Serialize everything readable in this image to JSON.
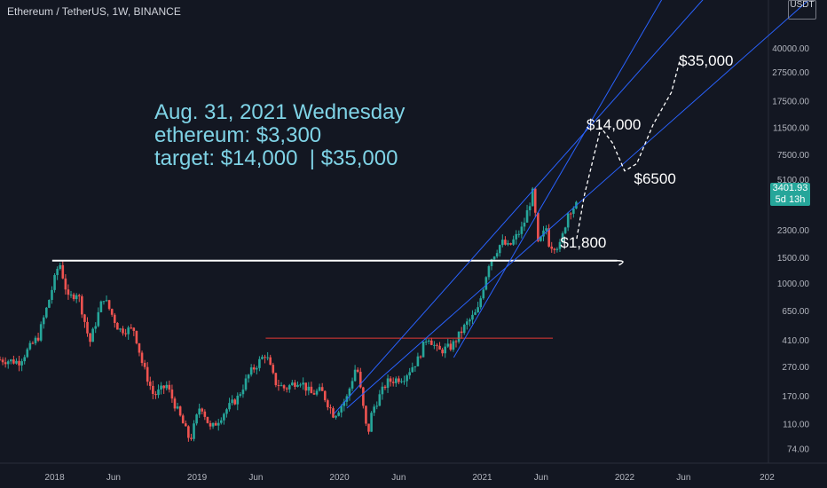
{
  "header": {
    "title": "Ethereum / TetherUS, 1W, BINANCE"
  },
  "currency": {
    "top": "USDT"
  },
  "current_price": {
    "value": "3401.93",
    "countdown": "5d 13h",
    "color": "#26a69a"
  },
  "annotation": {
    "lines": [
      "Aug. 31, 2021 Wednesday",
      "ethereum: $3,300",
      "target: $14,000  | $35,000"
    ],
    "color": "#7fd3e6"
  },
  "colors": {
    "up": "#26a69a",
    "down": "#ef5350",
    "trendline": "#2962ff",
    "support": "#ffffff",
    "resistance": "#e53935",
    "background": "#131722"
  },
  "chart_data": {
    "type": "candlestick",
    "y_scale": "log",
    "ylim": [
      59,
      85000
    ],
    "y_ticks": [
      "40000.00",
      "27500.00",
      "17500.00",
      "11500.00",
      "7500.00",
      "5100.00",
      "3401.93",
      "2300.00",
      "1500.00",
      "1000.00",
      "650.00",
      "410.00",
      "270.00",
      "170.00",
      "110.00",
      "74.00"
    ],
    "x_ticks": [
      "2018",
      "Jun",
      "2019",
      "Jun",
      "2020",
      "Jun",
      "2021",
      "Jun",
      "2022",
      "Jun",
      "202"
    ],
    "x_range": [
      "2017-08-14",
      "2022-12-31"
    ],
    "price_labels": [
      "$14,000",
      "$6500",
      "$35,000",
      "$1,800"
    ],
    "price_path": [
      [
        "2017-08-14",
        300
      ],
      [
        "2017-10-01",
        290
      ],
      [
        "2017-11-20",
        430
      ],
      [
        "2017-12-15",
        720
      ],
      [
        "2018-01-13",
        1400
      ],
      [
        "2018-02-05",
        780
      ],
      [
        "2018-03-01",
        870
      ],
      [
        "2018-04-01",
        390
      ],
      [
        "2018-05-06",
        810
      ],
      [
        "2018-06-15",
        480
      ],
      [
        "2018-07-24",
        480
      ],
      [
        "2018-08-14",
        280
      ],
      [
        "2018-09-12",
        170
      ],
      [
        "2018-10-15",
        200
      ],
      [
        "2018-11-20",
        120
      ],
      [
        "2018-12-14",
        84
      ],
      [
        "2019-01-10",
        150
      ],
      [
        "2019-02-05",
        100
      ],
      [
        "2019-03-15",
        135
      ],
      [
        "2019-04-15",
        165
      ],
      [
        "2019-05-15",
        240
      ],
      [
        "2019-06-26",
        330
      ],
      [
        "2019-07-20",
        210
      ],
      [
        "2019-08-15",
        190
      ],
      [
        "2019-09-20",
        220
      ],
      [
        "2019-10-20",
        175
      ],
      [
        "2019-11-15",
        185
      ],
      [
        "2019-12-18",
        125
      ],
      [
        "2020-01-20",
        165
      ],
      [
        "2020-02-14",
        280
      ],
      [
        "2020-03-13",
        90
      ],
      [
        "2020-03-25",
        135
      ],
      [
        "2020-05-01",
        210
      ],
      [
        "2020-06-15",
        230
      ],
      [
        "2020-07-20",
        300
      ],
      [
        "2020-08-14",
        440
      ],
      [
        "2020-09-10",
        340
      ],
      [
        "2020-10-15",
        370
      ],
      [
        "2020-11-20",
        520
      ],
      [
        "2020-12-20",
        640
      ],
      [
        "2021-01-19",
        1400
      ],
      [
        "2021-02-20",
        1900
      ],
      [
        "2021-03-10",
        1750
      ],
      [
        "2021-04-15",
        2400
      ],
      [
        "2021-05-12",
        4300
      ],
      [
        "2021-05-23",
        1800
      ],
      [
        "2021-06-15",
        2400
      ],
      [
        "2021-06-22",
        1800
      ],
      [
        "2021-07-20",
        1800
      ],
      [
        "2021-08-10",
        3100
      ],
      [
        "2021-08-31",
        3401.93
      ]
    ],
    "projection": [
      [
        "2021-08-31",
        2000
      ],
      [
        "2021-09-20",
        4000
      ],
      [
        "2021-11-01",
        11500
      ],
      [
        "2021-12-01",
        9000
      ],
      [
        "2022-01-01",
        5800
      ],
      [
        "2022-02-01",
        6500
      ],
      [
        "2022-03-15",
        12000
      ],
      [
        "2022-05-01",
        20000
      ],
      [
        "2022-05-25",
        35000
      ]
    ],
    "support": {
      "value": 1420,
      "from": "2018-01-13",
      "to": "2021-12-31"
    },
    "resistance": {
      "value": 420,
      "from": "2019-06-26",
      "to": "2021-07-01"
    }
  }
}
